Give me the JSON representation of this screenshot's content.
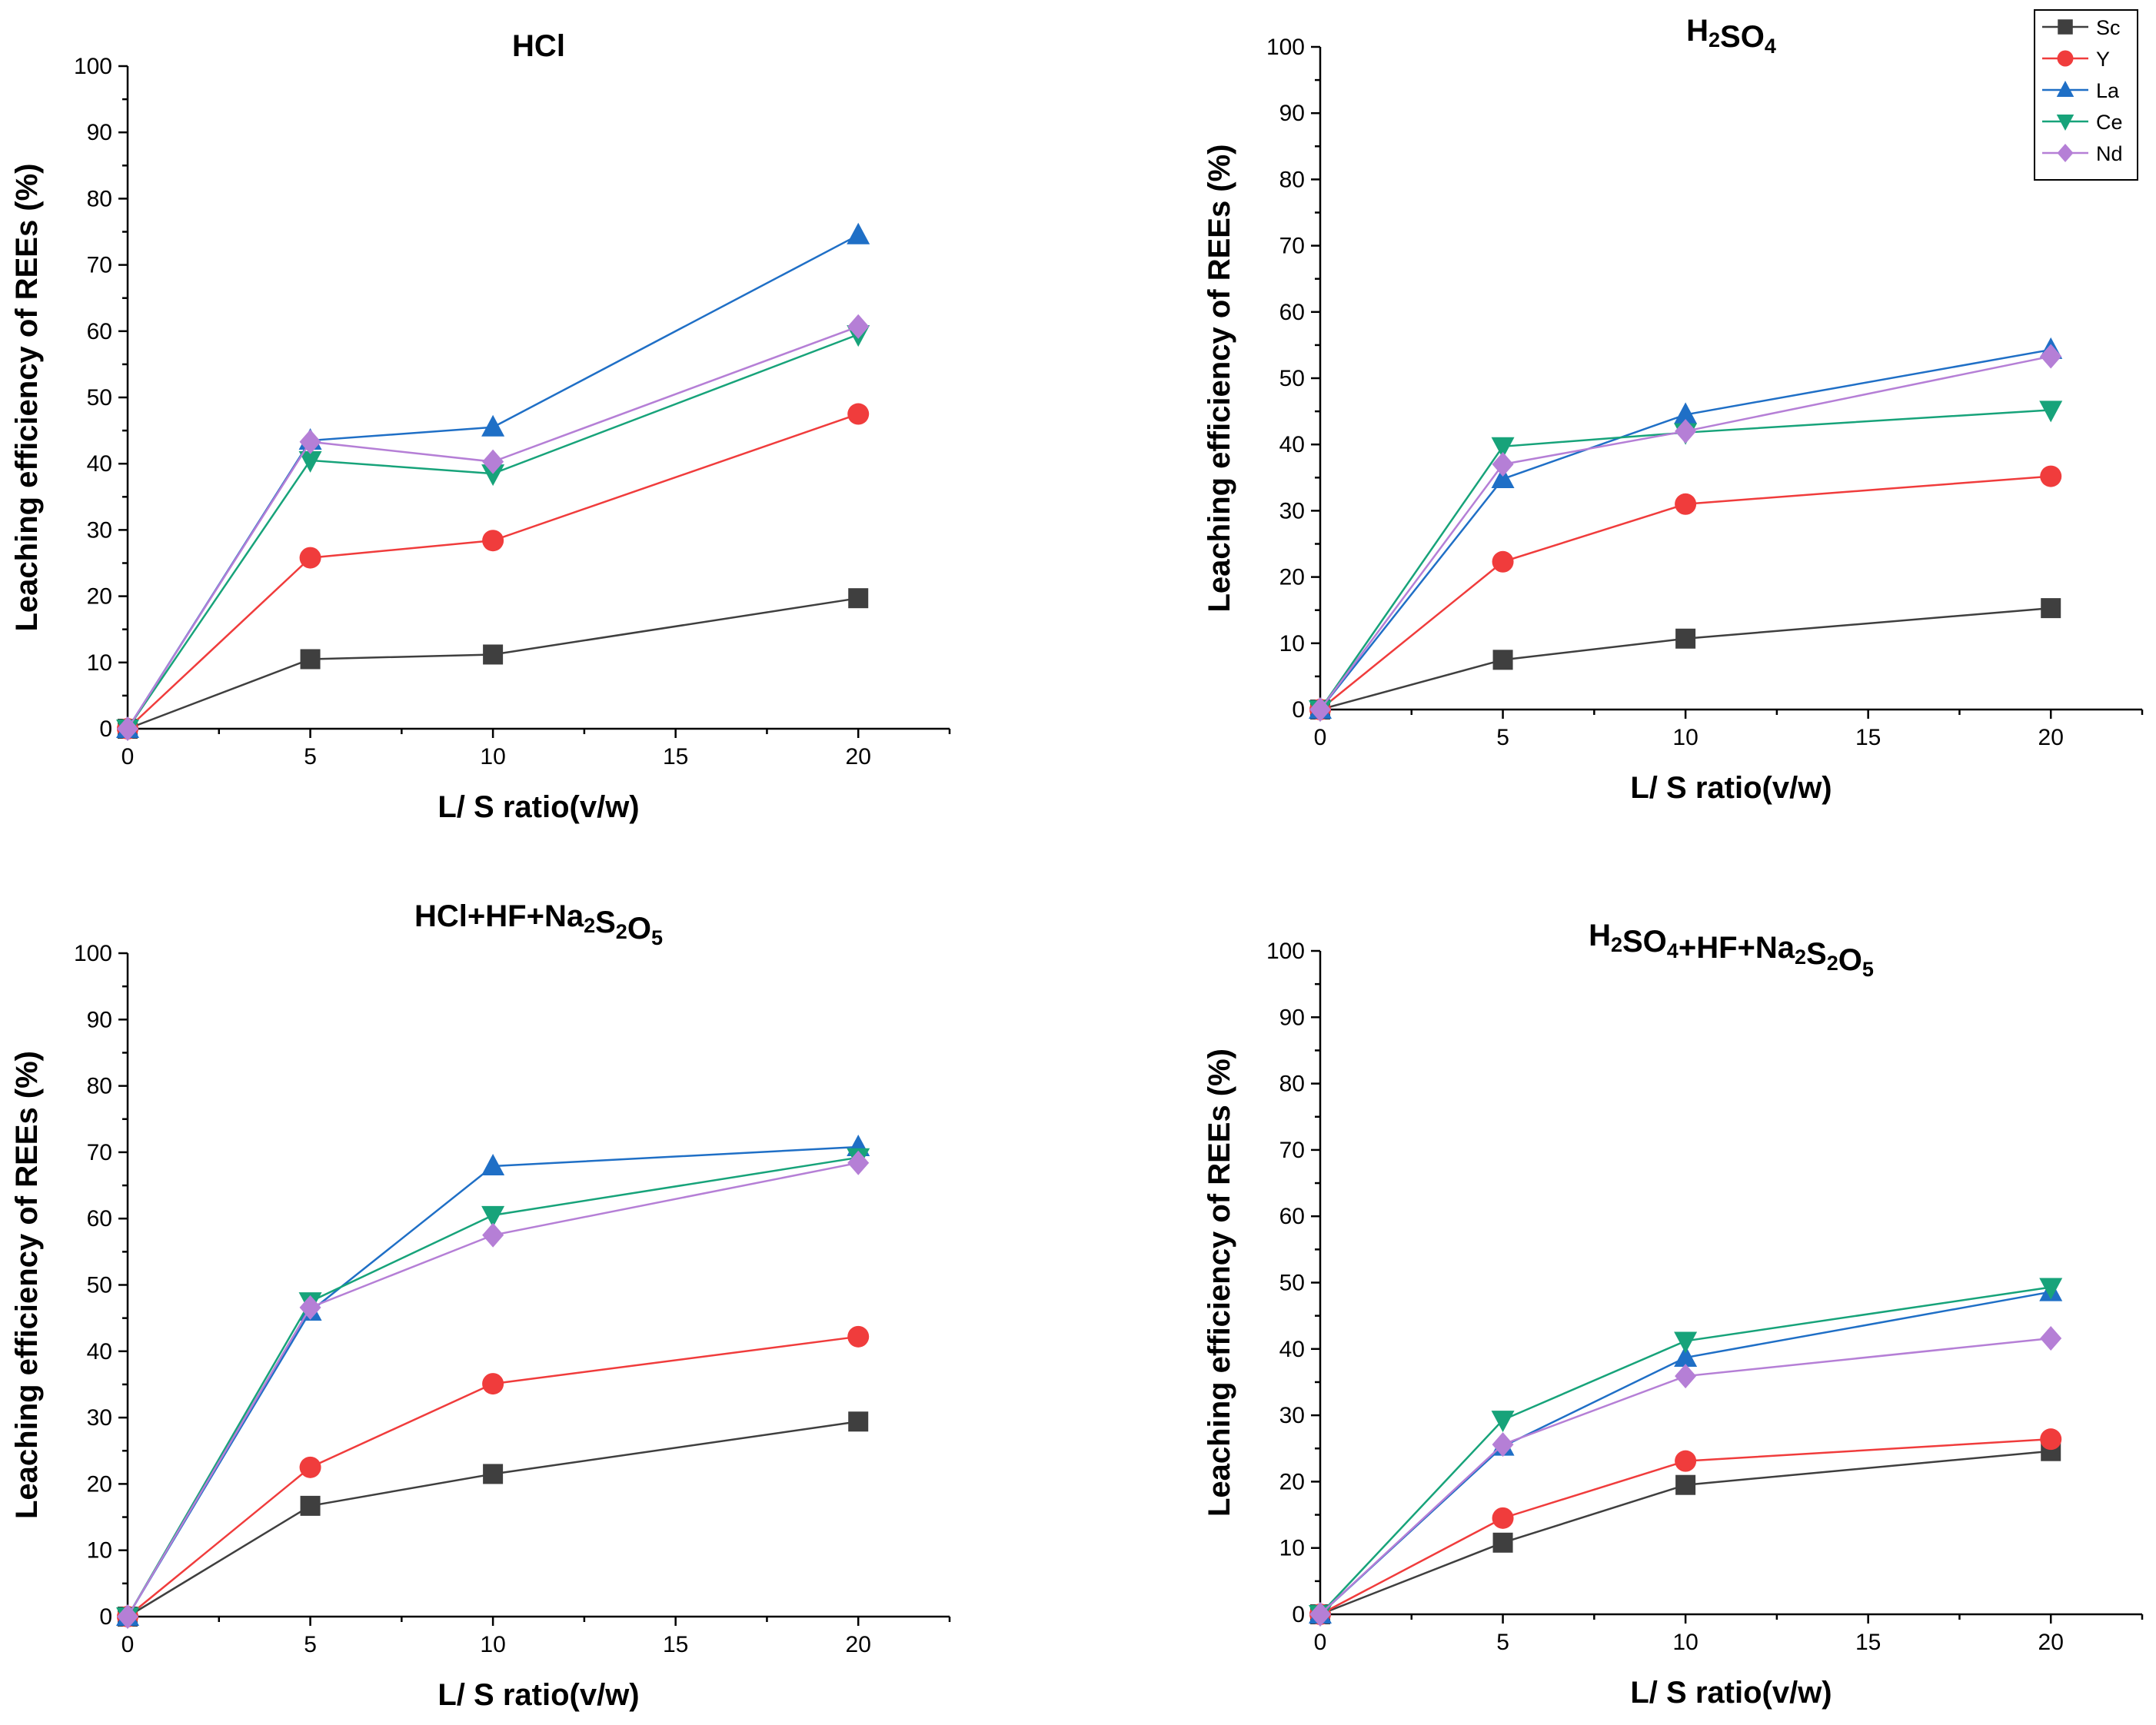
{
  "figure": {
    "legend": {
      "position": "top-right",
      "entries": [
        {
          "name": "Sc",
          "color": "#3f3f3f",
          "marker": "square"
        },
        {
          "name": "Y",
          "color": "#f03c3c",
          "marker": "circle"
        },
        {
          "name": "La",
          "color": "#1f6fc6",
          "marker": "triangle-up"
        },
        {
          "name": "Ce",
          "color": "#17a37a",
          "marker": "triangle-down"
        },
        {
          "name": "Nd",
          "color": "#b57fd6",
          "marker": "diamond"
        }
      ]
    }
  },
  "chart_data": [
    {
      "type": "line",
      "title": "HCl",
      "title_parts": [
        {
          "t": "HCl"
        }
      ],
      "xlabel": "L/ S ratio(v/w)",
      "ylabel": "Leaching efficiency of REEs (%)",
      "xlim": [
        0,
        22.5
      ],
      "ylim": [
        0,
        100
      ],
      "xticks": [
        0,
        5,
        10,
        15,
        20
      ],
      "yticks": [
        0,
        10,
        20,
        30,
        40,
        50,
        60,
        70,
        80,
        90,
        100
      ],
      "x": [
        0,
        5,
        10,
        20
      ],
      "series": [
        {
          "name": "Sc",
          "values": [
            0,
            10.5,
            11.2,
            19.7
          ]
        },
        {
          "name": "Y",
          "values": [
            0,
            25.8,
            28.4,
            47.5
          ]
        },
        {
          "name": "La",
          "values": [
            0,
            43.5,
            45.5,
            74.5
          ]
        },
        {
          "name": "Ce",
          "values": [
            0,
            40.5,
            38.5,
            59.5
          ]
        },
        {
          "name": "Nd",
          "values": [
            0,
            43.3,
            40.3,
            60.7
          ]
        }
      ]
    },
    {
      "type": "line",
      "title": "H2SO4",
      "title_parts": [
        {
          "t": "H"
        },
        {
          "t": "2",
          "sub": true
        },
        {
          "t": "SO"
        },
        {
          "t": "4",
          "sub": true
        }
      ],
      "xlabel": "L/ S ratio(v/w)",
      "ylabel": "Leaching efficiency of REEs (%)",
      "xlim": [
        0,
        22.5
      ],
      "ylim": [
        0,
        100
      ],
      "xticks": [
        0,
        5,
        10,
        15,
        20
      ],
      "yticks": [
        0,
        10,
        20,
        30,
        40,
        50,
        60,
        70,
        80,
        90,
        100
      ],
      "x": [
        0,
        5,
        10,
        20
      ],
      "series": [
        {
          "name": "Sc",
          "values": [
            0,
            7.5,
            10.7,
            15.3
          ]
        },
        {
          "name": "Y",
          "values": [
            0,
            22.3,
            31.0,
            35.2
          ]
        },
        {
          "name": "La",
          "values": [
            0,
            34.8,
            44.5,
            54.3
          ]
        },
        {
          "name": "Ce",
          "values": [
            0,
            39.7,
            41.8,
            45.2
          ]
        },
        {
          "name": "Nd",
          "values": [
            0,
            37.0,
            42.0,
            53.3
          ]
        }
      ]
    },
    {
      "type": "line",
      "title": "HCl+HF+Na2S2O5",
      "title_parts": [
        {
          "t": "HCl+HF+Na"
        },
        {
          "t": "2",
          "sub": true
        },
        {
          "t": "S"
        },
        {
          "t": "2",
          "sub": true
        },
        {
          "t": "O"
        },
        {
          "t": "5",
          "sub": true
        }
      ],
      "xlabel": "L/ S ratio(v/w)",
      "ylabel": "Leaching efficiency of REEs (%)",
      "xlim": [
        0,
        22.5
      ],
      "ylim": [
        0,
        100
      ],
      "xticks": [
        0,
        5,
        10,
        15,
        20
      ],
      "yticks": [
        0,
        10,
        20,
        30,
        40,
        50,
        60,
        70,
        80,
        90,
        100
      ],
      "x": [
        0,
        5,
        10,
        20
      ],
      "series": [
        {
          "name": "Sc",
          "values": [
            0,
            16.7,
            21.5,
            29.4
          ]
        },
        {
          "name": "Y",
          "values": [
            0,
            22.5,
            35.1,
            42.2
          ]
        },
        {
          "name": "La",
          "values": [
            0,
            46.0,
            67.9,
            70.8
          ]
        },
        {
          "name": "Ce",
          "values": [
            0,
            47.5,
            60.5,
            69.2
          ]
        },
        {
          "name": "Nd",
          "values": [
            0,
            46.6,
            57.5,
            68.4
          ]
        }
      ]
    },
    {
      "type": "line",
      "title": "H2SO4+HF+Na2S2O5",
      "title_parts": [
        {
          "t": "H"
        },
        {
          "t": "2",
          "sub": true
        },
        {
          "t": "SO"
        },
        {
          "t": "4",
          "sub": true
        },
        {
          "t": "+HF+Na"
        },
        {
          "t": "2",
          "sub": true
        },
        {
          "t": "S"
        },
        {
          "t": "2",
          "sub": true
        },
        {
          "t": "O"
        },
        {
          "t": "5",
          "sub": true
        }
      ],
      "xlabel": "L/ S ratio(v/w)",
      "ylabel": "Leaching efficiency of REEs (%)",
      "xlim": [
        0,
        22.5
      ],
      "ylim": [
        0,
        100
      ],
      "xticks": [
        0,
        5,
        10,
        15,
        20
      ],
      "yticks": [
        0,
        10,
        20,
        30,
        40,
        50,
        60,
        70,
        80,
        90,
        100
      ],
      "x": [
        0,
        5,
        10,
        20
      ],
      "series": [
        {
          "name": "Sc",
          "values": [
            0,
            10.8,
            19.5,
            24.6
          ]
        },
        {
          "name": "Y",
          "values": [
            0,
            14.5,
            23.1,
            26.4
          ]
        },
        {
          "name": "La",
          "values": [
            0,
            25.3,
            38.7,
            48.6
          ]
        },
        {
          "name": "Ce",
          "values": [
            0,
            29.3,
            41.2,
            49.3
          ]
        },
        {
          "name": "Nd",
          "values": [
            0,
            25.6,
            35.9,
            41.6
          ]
        }
      ]
    }
  ]
}
